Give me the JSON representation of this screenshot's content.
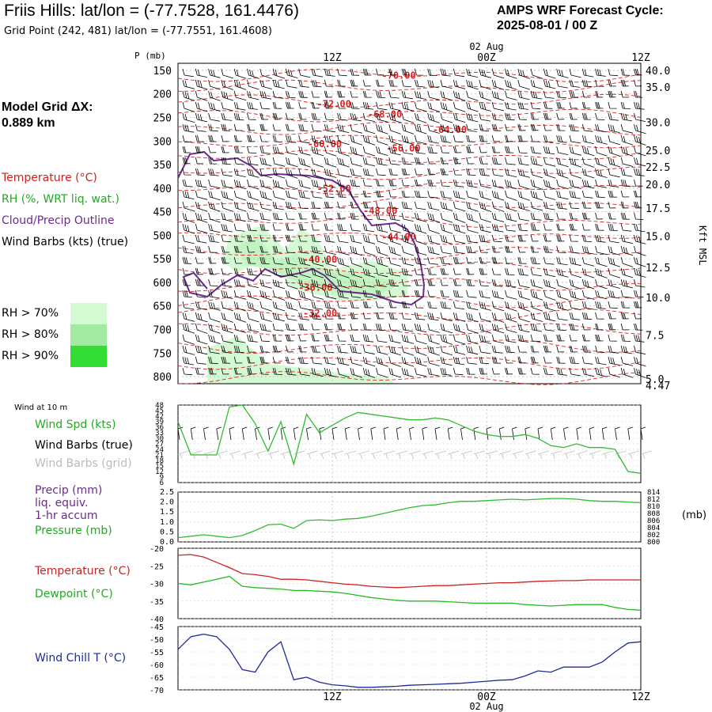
{
  "header": {
    "title": "Friis Hills:  lat/lon = (-77.7528, 161.4476)",
    "subtitle": "Grid Point (242, 481) lat/lon = (-77.7551, 161.4608)",
    "cycle_line1": "AMPS WRF Forecast Cycle:",
    "cycle_line2": "2025-08-01 / 00  Z"
  },
  "model_grid": {
    "line1": "Model Grid ΔX:",
    "line2": " 0.889 km"
  },
  "legend": {
    "temperature": "Temperature (°C)",
    "rh": "RH (%, WRT liq. wat.)",
    "cloud": "Cloud/Precip Outline",
    "wind_barbs": "Wind Barbs (kts) (true)",
    "rh70": "RH > 70%",
    "rh80": "RH > 80%",
    "rh90": "RH > 90%",
    "rh_colors": [
      "#d4fad4",
      "#a2eaa2",
      "#33dd33"
    ]
  },
  "time_axis": {
    "ticks": [
      "12Z",
      "00Z",
      "12Z"
    ],
    "date_label": "02 Aug"
  },
  "panel_labels": {
    "wind10m": "Wind at 10 m",
    "wind_spd": "Wind Spd (kts)",
    "barbs_true": "Wind Barbs (true)",
    "barbs_grid": "Wind Barbs (grid)",
    "precip1": "Precip (mm)",
    "precip2": "liq. equiv.",
    "precip3": "1-hr accum",
    "pressure": "Pressure (mb)",
    "pressure_unit": "(mb)",
    "temperature": "Temperature (°C)",
    "dewpoint": "Dewpoint (°C)",
    "windchill": "Wind Chill T (°C)",
    "p_axis": "P (mb)",
    "kft": "Kft MSL"
  },
  "chart_data": [
    {
      "type": "line",
      "name": "cross-section",
      "y_axis_label": "P (mb)",
      "pressure_ticks": [
        150,
        200,
        250,
        300,
        350,
        400,
        450,
        500,
        550,
        600,
        650,
        700,
        750,
        800
      ],
      "kft_ticks": [
        "40.0",
        "35.0",
        "30.0",
        "25.0",
        "22.5",
        "20.0",
        "17.5",
        "15.0",
        "12.5",
        "10.0",
        "7.5",
        "5.0",
        "4.47"
      ],
      "kft_pressure": [
        150,
        185,
        260,
        320,
        355,
        392,
        442,
        502,
        568,
        632,
        712,
        805,
        818
      ],
      "temperature_contour_labels": [
        "-70.00",
        "-72.00",
        "-68.00",
        "-64.00",
        "-60.00",
        "-56.00",
        "-52.00",
        "-48.00",
        "-44.00",
        "-40.00",
        "-36.00",
        "-32.00"
      ],
      "temperature_label_positions": [
        [
          0.44,
          168
        ],
        [
          0.3,
          228
        ],
        [
          0.41,
          250
        ],
        [
          0.55,
          283
        ],
        [
          0.28,
          313
        ],
        [
          0.45,
          322
        ],
        [
          0.3,
          408
        ],
        [
          0.4,
          455
        ],
        [
          0.44,
          510
        ],
        [
          0.27,
          558
        ],
        [
          0.26,
          618
        ],
        [
          0.27,
          672
        ]
      ],
      "colors": {
        "temperature": "#dd2222",
        "cloud": "#6b2a8e",
        "barb": "#000000"
      }
    },
    {
      "type": "line",
      "name": "wind10m",
      "x_hours": [
        0,
        1,
        2,
        3,
        4,
        5,
        6,
        7,
        8,
        9,
        10,
        11,
        12,
        13,
        14,
        15,
        16,
        17,
        18,
        19,
        20,
        21,
        22,
        23,
        24,
        25,
        26,
        27,
        28,
        29,
        30,
        31,
        32,
        33,
        34,
        35,
        36
      ],
      "wind_speed_kts": [
        39,
        21,
        21,
        21,
        47,
        48,
        38,
        23,
        39,
        16,
        43,
        33,
        37,
        41,
        44,
        43,
        42,
        41,
        40,
        40,
        41,
        40,
        37,
        34,
        32,
        31,
        31,
        32,
        30,
        26,
        25,
        27,
        25,
        25,
        24,
        12,
        11
      ],
      "y_ticks": [
        6,
        9,
        12,
        15,
        18,
        21,
        24,
        27,
        30,
        33,
        36,
        39,
        42,
        45,
        48
      ],
      "ylim": [
        6,
        48
      ],
      "color": "#33bb33"
    },
    {
      "type": "line",
      "name": "precip-pressure",
      "y_left_ticks": [
        "0.0",
        "0.5",
        "1.0",
        "1.5",
        "2.0",
        "2.5"
      ],
      "y_right_ticks": [
        800,
        802,
        804,
        806,
        808,
        810,
        812,
        814
      ],
      "ylim_left": [
        0,
        2.5
      ],
      "ylim_right": [
        800,
        814
      ],
      "pressure_mb": [
        801.2,
        801.6,
        802.0,
        801.6,
        801.2,
        801.8,
        803.2,
        804.8,
        805.0,
        803.8,
        806.0,
        806.2,
        806.0,
        806.4,
        806.6,
        807.2,
        808.0,
        808.8,
        809.6,
        810.2,
        810.4,
        811.0,
        811.4,
        811.4,
        811.6,
        811.8,
        812.0,
        811.8,
        812.0,
        812.2,
        812.2,
        812.0,
        811.6,
        811.4,
        811.4,
        811.2,
        811.0
      ],
      "color": "#33bb33"
    },
    {
      "type": "line",
      "name": "temperature-dewpoint",
      "y_ticks": [
        -20,
        -25,
        -30,
        -35,
        -40
      ],
      "ylim": [
        -40,
        -20
      ],
      "series": [
        {
          "name": "Temperature (°C)",
          "color": "#cc2222",
          "values": [
            -22.0,
            -21.8,
            -22.5,
            -24.0,
            -25.5,
            -27.2,
            -27.5,
            -28.0,
            -28.8,
            -28.8,
            -29.0,
            -29.4,
            -29.8,
            -30.2,
            -30.4,
            -30.8,
            -31.0,
            -31.2,
            -31.0,
            -30.8,
            -30.6,
            -30.6,
            -30.4,
            -30.2,
            -30.0,
            -29.8,
            -29.8,
            -29.6,
            -29.4,
            -29.3,
            -29.2,
            -29.2,
            -29.0,
            -29.0,
            -29.0,
            -29.0,
            -29.0
          ]
        },
        {
          "name": "Dewpoint (°C)",
          "color": "#22bb22",
          "values": [
            -30.0,
            -30.4,
            -29.6,
            -28.8,
            -28.0,
            -30.8,
            -31.2,
            -31.4,
            -31.6,
            -32.0,
            -32.0,
            -32.2,
            -32.4,
            -32.8,
            -33.4,
            -34.0,
            -34.4,
            -34.8,
            -35.0,
            -35.0,
            -35.0,
            -35.2,
            -35.4,
            -35.6,
            -35.6,
            -35.6,
            -35.6,
            -36.0,
            -36.2,
            -36.4,
            -36.2,
            -36.0,
            -36.0,
            -36.0,
            -36.8,
            -37.4,
            -37.6
          ]
        }
      ]
    },
    {
      "type": "line",
      "name": "windchill",
      "y_ticks": [
        -45,
        -50,
        -55,
        -60,
        -65,
        -70
      ],
      "ylim": [
        -70,
        -45
      ],
      "values": [
        -54,
        -49,
        -48,
        -49,
        -54,
        -62,
        -63,
        -55,
        -51,
        -66,
        -65,
        -67,
        -68,
        -68.4,
        -69,
        -69,
        -68.8,
        -68.6,
        -68.2,
        -68,
        -67.8,
        -67.6,
        -67.4,
        -67,
        -66.6,
        -66.2,
        -66,
        -64.5,
        -62.5,
        -63,
        -61,
        -61,
        -61,
        -59,
        -55,
        -51.5,
        -51
      ],
      "color": "#1f2a99"
    }
  ]
}
